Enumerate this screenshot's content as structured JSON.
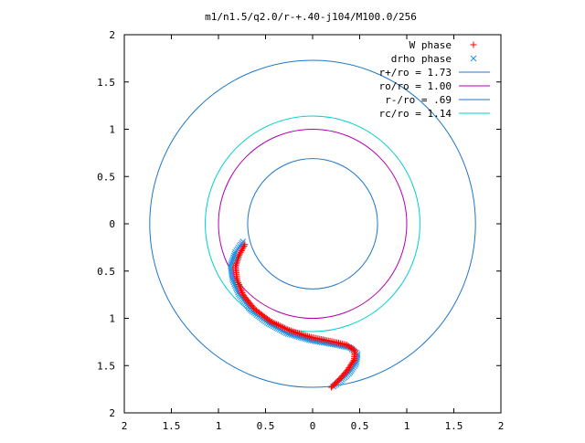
{
  "chart_data": {
    "type": "scatter",
    "title": "m1/n1.5/q2.0/r-+.40-j104/M100.0/256",
    "xlabel": "",
    "ylabel": "",
    "xlim": [
      -2,
      2
    ],
    "ylim": [
      -2,
      2
    ],
    "x_ticks": [
      -2,
      -1.5,
      -1,
      -0.5,
      0,
      0.5,
      1,
      1.5,
      2
    ],
    "y_ticks": [
      -2,
      -1.5,
      -1,
      -0.5,
      0,
      0.5,
      1,
      1.5,
      2
    ],
    "x_tick_labels": [
      "2",
      "1.5",
      "1",
      "0.5",
      "0",
      "0.5",
      "1",
      "1.5",
      "2"
    ],
    "y_tick_labels": [
      "2",
      "1.5",
      "1",
      "0.5",
      "0",
      "0.5",
      "1",
      "1.5",
      "2"
    ],
    "grid": false,
    "legend_position": "top-right",
    "series": [
      {
        "name": "W phase",
        "kind": "points",
        "marker": "plus",
        "color": "#ff0000",
        "path": [
          [
            -0.72,
            -0.22
          ],
          [
            -0.78,
            -0.33
          ],
          [
            -0.82,
            -0.46
          ],
          [
            -0.8,
            -0.6
          ],
          [
            -0.74,
            -0.75
          ],
          [
            -0.62,
            -0.9
          ],
          [
            -0.45,
            -1.03
          ],
          [
            -0.24,
            -1.13
          ],
          [
            -0.02,
            -1.2
          ],
          [
            0.18,
            -1.24
          ],
          [
            0.36,
            -1.28
          ],
          [
            0.45,
            -1.34
          ],
          [
            0.44,
            -1.44
          ],
          [
            0.37,
            -1.55
          ],
          [
            0.29,
            -1.64
          ],
          [
            0.2,
            -1.73
          ]
        ]
      },
      {
        "name": "drho phase",
        "kind": "points",
        "marker": "cross",
        "color": "#1e90e6",
        "path": [
          [
            -0.74,
            -0.19
          ],
          [
            -0.82,
            -0.3
          ],
          [
            -0.87,
            -0.44
          ],
          [
            -0.85,
            -0.59
          ],
          [
            -0.78,
            -0.75
          ],
          [
            -0.66,
            -0.91
          ],
          [
            -0.48,
            -1.05
          ],
          [
            -0.27,
            -1.16
          ],
          [
            -0.03,
            -1.23
          ],
          [
            0.2,
            -1.27
          ],
          [
            0.4,
            -1.31
          ],
          [
            0.48,
            -1.38
          ],
          [
            0.46,
            -1.48
          ],
          [
            0.39,
            -1.58
          ],
          [
            0.3,
            -1.66
          ],
          [
            0.22,
            -1.72
          ]
        ]
      },
      {
        "name": "r+/ro = 1.73",
        "kind": "circle",
        "radius": 1.73,
        "color": "#1f77c8"
      },
      {
        "name": "ro/ro = 1.00",
        "kind": "circle",
        "radius": 1.0,
        "color": "#b000b0"
      },
      {
        "name": "r-/ro = .69",
        "kind": "circle",
        "radius": 0.69,
        "color": "#1f77c8"
      },
      {
        "name": "rc/ro = 1.14",
        "kind": "circle",
        "radius": 1.14,
        "color": "#00d0d0"
      }
    ]
  }
}
